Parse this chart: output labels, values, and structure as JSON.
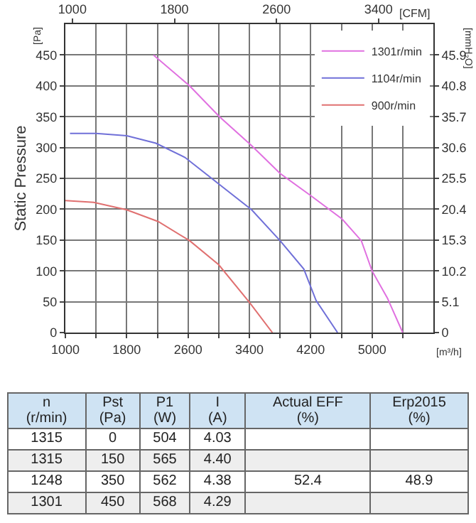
{
  "chart_data": [
    {
      "type": "line",
      "ylabel": "Static Pressure",
      "xlabel": "[m³/h]",
      "x2label": "[CFM]",
      "y2label": "[mmH₂O]",
      "annotations": [
        "[Pa]"
      ],
      "xlim": [
        1000,
        5800
      ],
      "xticks": [
        1000,
        {
          "value": 1400,
          "label": null
        },
        1800,
        {
          "value": 2200,
          "label": null
        },
        2600,
        {
          "value": 3000,
          "label": null
        },
        3400,
        {
          "value": 3800,
          "label": null
        },
        4200,
        {
          "value": 4600,
          "label": null
        },
        5000,
        {
          "value": 5400,
          "label": null
        }
      ],
      "x2lim": [
        945,
        3830
      ],
      "x2ticks": [
        1000,
        1800,
        2600,
        3400
      ],
      "ylim": [
        0,
        500
      ],
      "yticks": [
        0,
        50,
        100,
        150,
        200,
        250,
        300,
        350,
        400,
        450
      ],
      "y2lim": [
        0,
        51
      ],
      "y2ticks": [
        0,
        5.1,
        10.2,
        15.3,
        20.4,
        25.5,
        30.6,
        35.7,
        40.8,
        45.9
      ],
      "grid": true,
      "legend": "top right",
      "marker": "none",
      "line_style": "solid",
      "series": [
        {
          "name": "1301r/min",
          "color": "#e070e0",
          "x": [
            2150,
            2620,
            3010,
            3430,
            3800,
            4200,
            4610,
            4860,
            5000,
            5200,
            5400
          ],
          "values": [
            450,
            400,
            350,
            303,
            258,
            222,
            184,
            149,
            100,
            56,
            0
          ]
        },
        {
          "name": "1104r/min",
          "color": "#7070d8",
          "x": [
            1060,
            1400,
            1800,
            2180,
            2560,
            2990,
            3430,
            3800,
            4110,
            4270,
            4550
          ],
          "values": [
            323,
            323,
            319,
            307,
            284,
            242,
            199,
            149,
            103,
            52,
            0
          ]
        },
        {
          "name": "900r/min",
          "color": "#e07070",
          "x": [
            1000,
            1370,
            1800,
            2210,
            2620,
            3000,
            3400,
            3700
          ],
          "values": [
            214,
            211,
            199,
            180,
            149,
            110,
            49,
            0
          ]
        }
      ]
    },
    {
      "type": "other",
      "categories": [
        "n (r/min)",
        "Pst (Pa)",
        "P1 (W)",
        "I (A)",
        "Actual EFF (%)",
        "Erp2015 (%)"
      ],
      "cell_labels": [
        [
          "1315",
          "0",
          "504",
          "4.03",
          null,
          null
        ],
        [
          "1315",
          "150",
          "565",
          "4.40",
          null,
          null
        ],
        [
          "1248",
          "350",
          "562",
          "4.38",
          "52.4",
          "48.9"
        ],
        [
          "1301",
          "450",
          "568",
          "4.29",
          null,
          null
        ]
      ]
    }
  ]
}
